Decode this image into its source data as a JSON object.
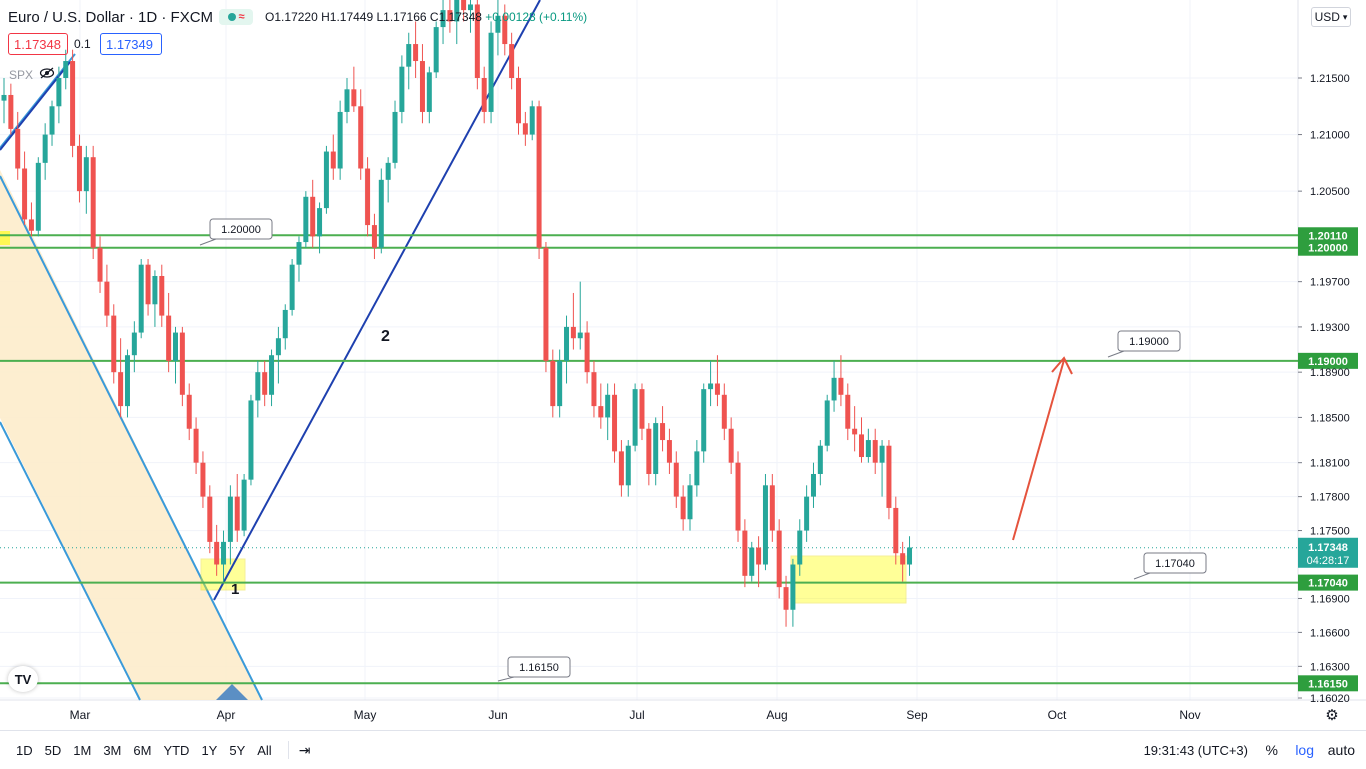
{
  "header": {
    "symbol": "Euro / U.S. Dollar · 1D · FXCM",
    "ohlc": {
      "o": "O1.17220",
      "h": "H1.17449",
      "l": "L1.17166",
      "c": "C1.17348",
      "chg": "+0.00128 (+0.11%)"
    }
  },
  "trade": {
    "sell": "1.17348",
    "spread": "0.1",
    "buy": "1.17349"
  },
  "indicator": {
    "label": "SPX"
  },
  "currency": "USD",
  "bottom": {
    "ranges": [
      "1D",
      "5D",
      "1M",
      "3M",
      "6M",
      "YTD",
      "1Y",
      "5Y",
      "All"
    ],
    "clock": "19:31:43 (UTC+3)",
    "percent": "%",
    "log": "log",
    "auto": "auto"
  },
  "colors": {
    "up": "#26a69a",
    "down": "#ef5350",
    "level": "#4caf50",
    "trend": "#1e40af",
    "channel": "#3a9ad9",
    "target_arrow": "#e5533d",
    "highlight": "#ffff00"
  },
  "chart_data": {
    "type": "candlestick",
    "y_axis_ticks": [
      "1.21500",
      "1.21000",
      "1.20500",
      "1.19700",
      "1.19300",
      "1.18900",
      "1.18500",
      "1.18100",
      "1.17800",
      "1.17500",
      "1.16900",
      "1.16600",
      "1.16300",
      "1.16020"
    ],
    "x_axis_ticks": [
      "Mar",
      "Apr",
      "May",
      "Jun",
      "Jul",
      "Aug",
      "Sep",
      "Oct",
      "Nov"
    ],
    "levels": [
      {
        "value": 1.2011,
        "label": "1.20110",
        "callout": ""
      },
      {
        "value": 1.2,
        "label": "1.20000",
        "callout": "1.20000"
      },
      {
        "value": 1.19,
        "label": "1.19000",
        "callout": "1.19000"
      },
      {
        "value": 1.1704,
        "label": "1.17040",
        "callout": "1.17040"
      },
      {
        "value": 1.1615,
        "label": "1.16150",
        "callout": "1.16150"
      }
    ],
    "current_price": {
      "value": 1.17348,
      "label": "1.17348",
      "countdown": "04:28:17"
    },
    "annotations": [
      "1",
      "2"
    ],
    "candles": [
      [
        1.213,
        1.215,
        1.211,
        1.2135
      ],
      [
        1.2135,
        1.2145,
        1.21,
        1.2105
      ],
      [
        1.2105,
        1.212,
        1.206,
        1.207
      ],
      [
        1.207,
        1.2085,
        1.202,
        1.2025
      ],
      [
        1.2025,
        1.204,
        1.201,
        1.2015
      ],
      [
        1.2015,
        1.208,
        1.201,
        1.2075
      ],
      [
        1.2075,
        1.211,
        1.206,
        1.21
      ],
      [
        1.21,
        1.213,
        1.209,
        1.2125
      ],
      [
        1.2125,
        1.216,
        1.211,
        1.215
      ],
      [
        1.215,
        1.2175,
        1.214,
        1.2165
      ],
      [
        1.2165,
        1.2175,
        1.208,
        1.209
      ],
      [
        1.209,
        1.21,
        1.204,
        1.205
      ],
      [
        1.205,
        1.209,
        1.203,
        1.208
      ],
      [
        1.208,
        1.209,
        1.199,
        1.2
      ],
      [
        1.2,
        1.201,
        1.196,
        1.197
      ],
      [
        1.197,
        1.1985,
        1.193,
        1.194
      ],
      [
        1.194,
        1.195,
        1.188,
        1.189
      ],
      [
        1.189,
        1.192,
        1.185,
        1.186
      ],
      [
        1.186,
        1.191,
        1.185,
        1.1905
      ],
      [
        1.1905,
        1.1935,
        1.189,
        1.1925
      ],
      [
        1.1925,
        1.199,
        1.192,
        1.1985
      ],
      [
        1.1985,
        1.199,
        1.194,
        1.195
      ],
      [
        1.195,
        1.198,
        1.193,
        1.1975
      ],
      [
        1.1975,
        1.1985,
        1.193,
        1.194
      ],
      [
        1.194,
        1.196,
        1.189,
        1.19
      ],
      [
        1.19,
        1.193,
        1.188,
        1.1925
      ],
      [
        1.1925,
        1.193,
        1.186,
        1.187
      ],
      [
        1.187,
        1.188,
        1.183,
        1.184
      ],
      [
        1.184,
        1.185,
        1.18,
        1.181
      ],
      [
        1.181,
        1.182,
        1.177,
        1.178
      ],
      [
        1.178,
        1.179,
        1.173,
        1.174
      ],
      [
        1.174,
        1.1755,
        1.171,
        1.172
      ],
      [
        1.172,
        1.175,
        1.1705,
        1.174
      ],
      [
        1.174,
        1.179,
        1.172,
        1.178
      ],
      [
        1.178,
        1.18,
        1.174,
        1.175
      ],
      [
        1.175,
        1.18,
        1.1745,
        1.1795
      ],
      [
        1.1795,
        1.187,
        1.179,
        1.1865
      ],
      [
        1.1865,
        1.19,
        1.185,
        1.189
      ],
      [
        1.189,
        1.19,
        1.186,
        1.187
      ],
      [
        1.187,
        1.191,
        1.186,
        1.1905
      ],
      [
        1.1905,
        1.193,
        1.188,
        1.192
      ],
      [
        1.192,
        1.195,
        1.191,
        1.1945
      ],
      [
        1.1945,
        1.199,
        1.194,
        1.1985
      ],
      [
        1.1985,
        1.201,
        1.197,
        1.2005
      ],
      [
        1.2005,
        1.205,
        1.2,
        1.2045
      ],
      [
        1.2045,
        1.206,
        1.2,
        1.201
      ],
      [
        1.201,
        1.204,
        1.1995,
        1.2035
      ],
      [
        1.2035,
        1.209,
        1.203,
        1.2085
      ],
      [
        1.2085,
        1.21,
        1.206,
        1.207
      ],
      [
        1.207,
        1.213,
        1.206,
        1.212
      ],
      [
        1.212,
        1.215,
        1.211,
        1.214
      ],
      [
        1.214,
        1.216,
        1.212,
        1.2125
      ],
      [
        1.2125,
        1.214,
        1.206,
        1.207
      ],
      [
        1.207,
        1.208,
        1.201,
        1.202
      ],
      [
        1.202,
        1.203,
        1.199,
        1.2
      ],
      [
        1.2,
        1.207,
        1.1995,
        1.206
      ],
      [
        1.206,
        1.208,
        1.204,
        1.2075
      ],
      [
        1.2075,
        1.213,
        1.207,
        1.212
      ],
      [
        1.212,
        1.217,
        1.211,
        1.216
      ],
      [
        1.216,
        1.219,
        1.214,
        1.218
      ],
      [
        1.218,
        1.22,
        1.215,
        1.2165
      ],
      [
        1.2165,
        1.218,
        1.211,
        1.212
      ],
      [
        1.212,
        1.216,
        1.211,
        1.2155
      ],
      [
        1.2155,
        1.22,
        1.215,
        1.2195
      ],
      [
        1.2195,
        1.222,
        1.218,
        1.221
      ],
      [
        1.221,
        1.224,
        1.219,
        1.22
      ],
      [
        1.22,
        1.223,
        1.218,
        1.2225
      ],
      [
        1.2225,
        1.224,
        1.22,
        1.221
      ],
      [
        1.221,
        1.223,
        1.219,
        1.2215
      ],
      [
        1.2215,
        1.223,
        1.214,
        1.215
      ],
      [
        1.215,
        1.216,
        1.211,
        1.212
      ],
      [
        1.212,
        1.22,
        1.211,
        1.219
      ],
      [
        1.219,
        1.222,
        1.217,
        1.2205
      ],
      [
        1.2205,
        1.2215,
        1.217,
        1.218
      ],
      [
        1.218,
        1.219,
        1.214,
        1.215
      ],
      [
        1.215,
        1.216,
        1.21,
        1.211
      ],
      [
        1.211,
        1.212,
        1.209,
        1.21
      ],
      [
        1.21,
        1.213,
        1.2095,
        1.2125
      ],
      [
        1.2125,
        1.213,
        1.199,
        1.2
      ],
      [
        1.2,
        1.2005,
        1.189,
        1.19
      ],
      [
        1.19,
        1.191,
        1.185,
        1.186
      ],
      [
        1.186,
        1.191,
        1.185,
        1.19
      ],
      [
        1.19,
        1.194,
        1.188,
        1.193
      ],
      [
        1.193,
        1.196,
        1.191,
        1.192
      ],
      [
        1.192,
        1.197,
        1.191,
        1.1925
      ],
      [
        1.1925,
        1.1935,
        1.188,
        1.189
      ],
      [
        1.189,
        1.19,
        1.185,
        1.186
      ],
      [
        1.186,
        1.188,
        1.184,
        1.185
      ],
      [
        1.185,
        1.188,
        1.183,
        1.187
      ],
      [
        1.187,
        1.188,
        1.181,
        1.182
      ],
      [
        1.182,
        1.183,
        1.178,
        1.179
      ],
      [
        1.179,
        1.183,
        1.178,
        1.1825
      ],
      [
        1.1825,
        1.188,
        1.182,
        1.1875
      ],
      [
        1.1875,
        1.188,
        1.183,
        1.184
      ],
      [
        1.184,
        1.1845,
        1.179,
        1.18
      ],
      [
        1.18,
        1.185,
        1.179,
        1.1845
      ],
      [
        1.1845,
        1.186,
        1.182,
        1.183
      ],
      [
        1.183,
        1.184,
        1.18,
        1.181
      ],
      [
        1.181,
        1.182,
        1.177,
        1.178
      ],
      [
        1.178,
        1.179,
        1.175,
        1.176
      ],
      [
        1.176,
        1.18,
        1.175,
        1.179
      ],
      [
        1.179,
        1.183,
        1.178,
        1.182
      ],
      [
        1.182,
        1.188,
        1.181,
        1.1875
      ],
      [
        1.1875,
        1.19,
        1.186,
        1.188
      ],
      [
        1.188,
        1.1905,
        1.186,
        1.187
      ],
      [
        1.187,
        1.188,
        1.183,
        1.184
      ],
      [
        1.184,
        1.185,
        1.18,
        1.181
      ],
      [
        1.181,
        1.182,
        1.174,
        1.175
      ],
      [
        1.175,
        1.176,
        1.17,
        1.171
      ],
      [
        1.171,
        1.174,
        1.1705,
        1.1735
      ],
      [
        1.1735,
        1.1745,
        1.17,
        1.172
      ],
      [
        1.172,
        1.18,
        1.1715,
        1.179
      ],
      [
        1.179,
        1.18,
        1.174,
        1.175
      ],
      [
        1.175,
        1.176,
        1.169,
        1.17
      ],
      [
        1.17,
        1.171,
        1.1665,
        1.168
      ],
      [
        1.168,
        1.1725,
        1.1665,
        1.172
      ],
      [
        1.172,
        1.176,
        1.171,
        1.175
      ],
      [
        1.175,
        1.179,
        1.174,
        1.178
      ],
      [
        1.178,
        1.181,
        1.177,
        1.18
      ],
      [
        1.18,
        1.183,
        1.179,
        1.1825
      ],
      [
        1.1825,
        1.187,
        1.182,
        1.1865
      ],
      [
        1.1865,
        1.19,
        1.1855,
        1.1885
      ],
      [
        1.1885,
        1.1905,
        1.186,
        1.187
      ],
      [
        1.187,
        1.188,
        1.183,
        1.184
      ],
      [
        1.184,
        1.186,
        1.182,
        1.1835
      ],
      [
        1.1835,
        1.185,
        1.181,
        1.1815
      ],
      [
        1.1815,
        1.184,
        1.181,
        1.183
      ],
      [
        1.183,
        1.184,
        1.18,
        1.181
      ],
      [
        1.181,
        1.183,
        1.178,
        1.1825
      ],
      [
        1.1825,
        1.183,
        1.176,
        1.177
      ],
      [
        1.177,
        1.178,
        1.172,
        1.173
      ],
      [
        1.173,
        1.174,
        1.1705,
        1.172
      ],
      [
        1.172,
        1.1745,
        1.171,
        1.1735
      ]
    ]
  }
}
